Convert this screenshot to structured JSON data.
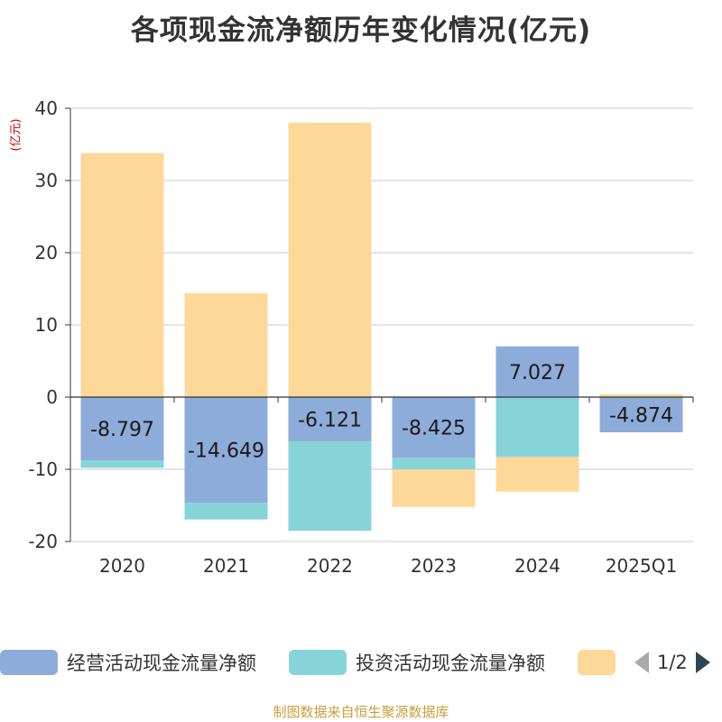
{
  "title": "各项现金流净额历年变化情况(亿元)",
  "unit_label": "(亿元)",
  "footer": "制图数据来自恒生聚源数据库",
  "legend": {
    "page_indicator": "1/2"
  },
  "colors": {
    "operating": "#8eacd9",
    "investing": "#87d4d8",
    "financing": "#fed898",
    "axis": "#333333",
    "grid": "#c8c8c8"
  },
  "chart_data": {
    "type": "bar",
    "stacked": true,
    "categories": [
      "2020",
      "2021",
      "2022",
      "2023",
      "2024",
      "2025Q1"
    ],
    "series": [
      {
        "name": "经营活动现金流量净额",
        "values": [
          -8.797,
          -14.649,
          -6.121,
          -8.425,
          7.027,
          -4.874
        ],
        "labels": [
          "-8.797",
          "-14.649",
          "-6.121",
          "-8.425",
          "7.027",
          "-4.874"
        ]
      },
      {
        "name": "投资活动现金流量净额",
        "values": [
          -1.0,
          -2.3,
          -12.4,
          -1.6,
          -8.3,
          0
        ]
      },
      {
        "name": "",
        "values": [
          33.8,
          14.4,
          38.0,
          -5.2,
          -4.8,
          0.4
        ]
      }
    ],
    "ylabel": "(亿元)",
    "ylim": [
      -20,
      40
    ],
    "yticks": [
      -20,
      -10,
      0,
      10,
      20,
      30,
      40
    ],
    "grid": true,
    "legend_position": "bottom"
  }
}
